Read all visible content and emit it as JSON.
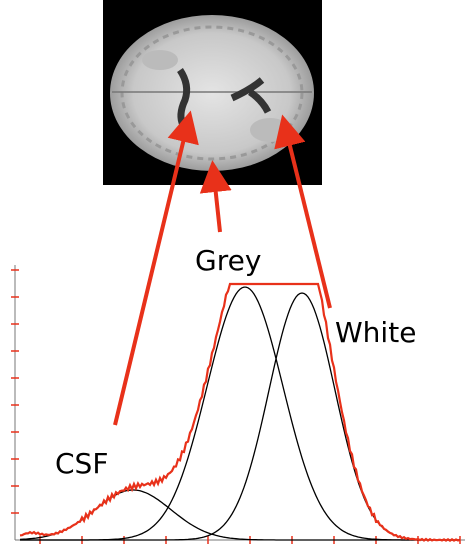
{
  "labels": {
    "grey": "Grey",
    "white": "White",
    "csf": "CSF"
  }
}
